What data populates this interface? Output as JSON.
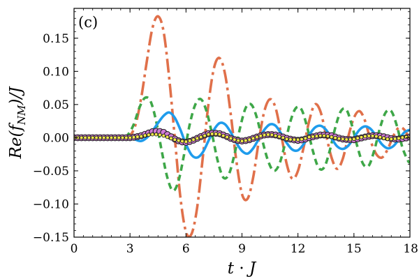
{
  "chart_data": {
    "type": "line",
    "panel_label": "(c)",
    "xlabel": "t · J",
    "ylabel": "Re(f_NM)/J",
    "ylabel_parts": {
      "pre": "Re(",
      "base": "f",
      "sub": "NM",
      "post": ")/J"
    },
    "xlabel_parts": {
      "t": "t",
      "dot": " · ",
      "j": "J"
    },
    "xlim": [
      0,
      18
    ],
    "ylim": [
      -0.15,
      0.195
    ],
    "xticks": [
      0,
      3,
      6,
      9,
      12,
      15,
      18
    ],
    "xtick_labels": [
      "0",
      "3",
      "6",
      "9",
      "12",
      "15",
      "18"
    ],
    "yticks": [
      -0.15,
      -0.1,
      -0.05,
      0.0,
      0.05,
      0.1,
      0.15
    ],
    "ytick_labels": [
      "−0.15",
      "−0.10",
      "−0.05",
      "0.00",
      "0.05",
      "0.10",
      "0.15"
    ],
    "series": [
      {
        "name": "dash-dot orange",
        "color": "#e0704a",
        "style": "dashdot",
        "x": [
          0,
          2.7,
          3.0,
          3.3,
          3.6,
          3.9,
          4.2,
          4.5,
          4.8,
          5.1,
          5.4,
          5.7,
          6.0,
          6.3,
          6.6,
          6.9,
          7.2,
          7.5,
          7.8,
          8.1,
          8.4,
          8.7,
          9.0,
          9.3,
          9.6,
          9.9,
          10.2,
          10.5,
          10.8,
          11.1,
          11.4,
          11.7,
          12.0,
          12.3,
          12.6,
          12.9,
          13.2,
          13.5,
          13.8,
          14.1,
          14.4,
          14.7,
          15.0,
          15.3,
          15.6,
          15.9,
          16.2,
          16.5,
          16.8,
          17.1,
          17.4,
          17.7,
          18.0
        ],
        "y": [
          0,
          0.0,
          0.003,
          0.02,
          0.06,
          0.115,
          0.165,
          0.183,
          0.16,
          0.09,
          0.0,
          -0.09,
          -0.142,
          -0.145,
          -0.105,
          -0.03,
          0.05,
          0.105,
          0.12,
          0.095,
          0.035,
          -0.035,
          -0.085,
          -0.092,
          -0.06,
          -0.005,
          0.04,
          0.058,
          0.045,
          0.005,
          -0.04,
          -0.062,
          -0.05,
          -0.015,
          0.025,
          0.05,
          0.04,
          0.005,
          -0.03,
          -0.047,
          -0.032,
          0.002,
          0.03,
          0.04,
          0.025,
          -0.005,
          -0.025,
          -0.03,
          -0.018,
          0.002,
          0.015,
          0.012,
          -0.003
        ]
      },
      {
        "name": "dashed green",
        "color": "#3ea748",
        "style": "dashed",
        "x": [
          0,
          2.6,
          2.9,
          3.2,
          3.5,
          3.8,
          4.1,
          4.4,
          4.7,
          5.0,
          5.3,
          5.6,
          5.9,
          6.2,
          6.5,
          6.8,
          7.1,
          7.4,
          7.7,
          8.0,
          8.3,
          8.6,
          8.9,
          9.2,
          9.5,
          9.8,
          10.1,
          10.4,
          10.7,
          11.0,
          11.3,
          11.6,
          11.9,
          12.2,
          12.5,
          12.8,
          13.1,
          13.4,
          13.7,
          14.0,
          14.3,
          14.6,
          14.9,
          15.2,
          15.5,
          15.8,
          16.1,
          16.4,
          16.7,
          17.0,
          17.3,
          17.6,
          17.9,
          18.0
        ],
        "y": [
          0,
          0.0,
          0.005,
          0.02,
          0.045,
          0.06,
          0.055,
          0.025,
          -0.02,
          -0.06,
          -0.08,
          -0.065,
          -0.025,
          0.02,
          0.05,
          0.058,
          0.04,
          0.005,
          -0.035,
          -0.06,
          -0.055,
          -0.025,
          0.015,
          0.045,
          0.05,
          0.03,
          -0.005,
          -0.035,
          -0.05,
          -0.04,
          -0.01,
          0.025,
          0.045,
          0.042,
          0.015,
          -0.02,
          -0.045,
          -0.045,
          -0.02,
          0.015,
          0.04,
          0.042,
          0.018,
          -0.015,
          -0.04,
          -0.042,
          -0.018,
          0.015,
          0.038,
          0.04,
          0.018,
          -0.015,
          -0.035,
          -0.037
        ]
      },
      {
        "name": "solid blue",
        "color": "#1f9cec",
        "style": "solid",
        "x": [
          0,
          3.0,
          3.3,
          3.6,
          3.9,
          4.2,
          4.5,
          4.8,
          5.1,
          5.4,
          5.7,
          6.0,
          6.3,
          6.6,
          6.9,
          7.2,
          7.5,
          7.8,
          8.1,
          8.4,
          8.7,
          9.0,
          9.3,
          9.6,
          9.9,
          10.2,
          10.5,
          10.8,
          11.1,
          11.4,
          11.7,
          12.0,
          12.3,
          12.6,
          12.9,
          13.2,
          13.5,
          13.8,
          14.1,
          14.4,
          14.7,
          15.0,
          15.3,
          15.6,
          15.9,
          16.2,
          16.5,
          16.8,
          17.1,
          17.4,
          17.7,
          18.0
        ],
        "y": [
          0,
          0.0,
          -0.003,
          -0.005,
          0.0,
          0.01,
          0.022,
          0.033,
          0.038,
          0.03,
          0.012,
          -0.01,
          -0.026,
          -0.03,
          -0.022,
          -0.005,
          0.012,
          0.022,
          0.02,
          0.008,
          -0.008,
          -0.02,
          -0.024,
          -0.016,
          -0.002,
          0.012,
          0.02,
          0.018,
          0.006,
          -0.008,
          -0.018,
          -0.019,
          -0.01,
          0.004,
          0.015,
          0.018,
          0.012,
          -0.001,
          -0.013,
          -0.017,
          -0.012,
          0.0,
          0.012,
          0.017,
          0.013,
          0.002,
          -0.01,
          -0.016,
          -0.013,
          -0.003,
          0.008,
          0.012
        ]
      },
      {
        "name": "violet circles",
        "color": "#d07ad6",
        "style": "markers-large",
        "x": [
          0,
          3.0,
          3.3,
          3.6,
          3.9,
          4.2,
          4.5,
          4.8,
          5.1,
          5.4,
          5.7,
          6.0,
          6.3,
          6.6,
          6.9,
          7.2,
          7.5,
          7.8,
          8.1,
          8.4,
          8.7,
          9.0,
          9.3,
          9.6,
          9.9,
          10.2,
          10.5,
          10.8,
          11.1,
          11.4,
          11.7,
          12.0,
          12.3,
          12.6,
          12.9,
          13.2,
          13.5,
          13.8,
          14.1,
          14.4,
          14.7,
          15.0,
          15.3,
          15.6,
          15.9,
          16.2,
          16.5,
          16.8,
          17.1,
          17.4,
          17.7,
          18.0
        ],
        "y": [
          0,
          0.0,
          0.001,
          0.003,
          0.006,
          0.009,
          0.01,
          0.008,
          0.003,
          -0.002,
          -0.006,
          -0.007,
          -0.005,
          -0.001,
          0.003,
          0.006,
          0.007,
          0.006,
          0.003,
          -0.001,
          -0.004,
          -0.005,
          -0.004,
          -0.001,
          0.002,
          0.004,
          0.005,
          0.004,
          0.002,
          -0.001,
          -0.003,
          -0.004,
          -0.003,
          0.0,
          0.002,
          0.004,
          0.004,
          0.003,
          0.0,
          -0.002,
          -0.003,
          -0.003,
          -0.001,
          0.001,
          0.003,
          0.003,
          0.002,
          0.0,
          -0.002,
          -0.002,
          -0.001,
          0.001
        ]
      },
      {
        "name": "yellow dots",
        "color": "#f2e84a",
        "style": "markers-small",
        "x": [
          0,
          3.0,
          3.3,
          3.6,
          3.9,
          4.2,
          4.5,
          4.8,
          5.1,
          5.4,
          5.7,
          6.0,
          6.3,
          6.6,
          6.9,
          7.2,
          7.5,
          7.8,
          8.1,
          8.4,
          8.7,
          9.0,
          9.3,
          9.6,
          9.9,
          10.2,
          10.5,
          10.8,
          11.1,
          11.4,
          11.7,
          12.0,
          12.3,
          12.6,
          12.9,
          13.2,
          13.5,
          13.8,
          14.1,
          14.4,
          14.7,
          15.0,
          15.3,
          15.6,
          15.9,
          16.2,
          16.5,
          16.8,
          17.1,
          17.4,
          17.7,
          18.0
        ],
        "y": [
          0,
          0.0,
          0.001,
          0.002,
          0.004,
          0.005,
          0.005,
          0.003,
          0.0,
          -0.003,
          -0.005,
          -0.006,
          -0.004,
          -0.001,
          0.002,
          0.005,
          0.006,
          0.005,
          0.002,
          -0.001,
          -0.004,
          -0.005,
          -0.004,
          -0.001,
          0.002,
          0.004,
          0.005,
          0.003,
          0.001,
          -0.002,
          -0.003,
          -0.003,
          -0.002,
          0.001,
          0.002,
          0.003,
          0.003,
          0.001,
          -0.001,
          -0.002,
          -0.003,
          -0.002,
          0.0,
          0.002,
          0.003,
          0.002,
          0.0,
          -0.002,
          -0.002,
          -0.001,
          0.001,
          0.001
        ]
      }
    ]
  }
}
